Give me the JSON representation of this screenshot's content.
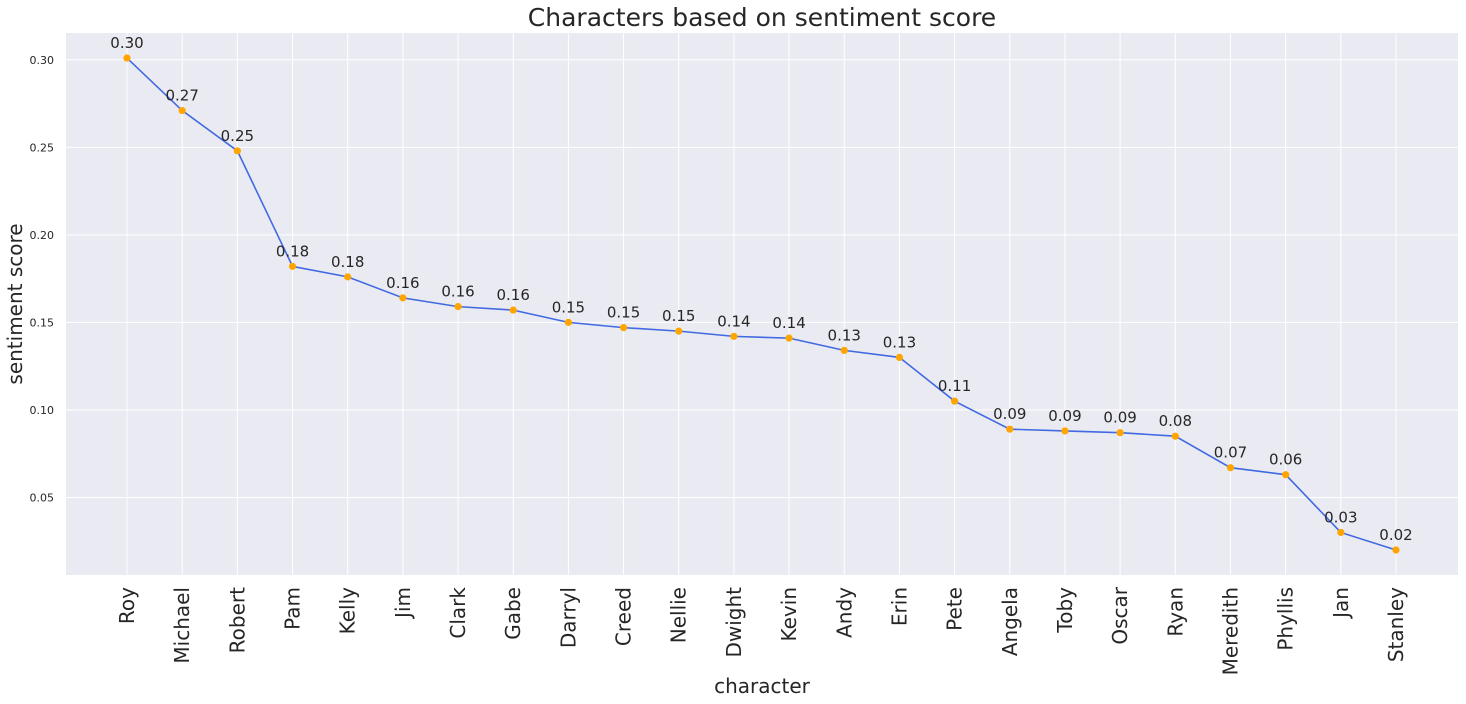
{
  "chart_data": {
    "type": "line",
    "title": "Characters based on sentiment score",
    "xlabel": "character",
    "ylabel": "sentiment score",
    "categories": [
      "Roy",
      "Michael",
      "Robert",
      "Pam",
      "Kelly",
      "Jim",
      "Clark",
      "Gabe",
      "Darryl",
      "Creed",
      "Nellie",
      "Dwight",
      "Kevin",
      "Andy",
      "Erin",
      "Pete",
      "Angela",
      "Toby",
      "Oscar",
      "Ryan",
      "Meredith",
      "Phyllis",
      "Jan",
      "Stanley"
    ],
    "values": [
      0.301,
      0.271,
      0.248,
      0.182,
      0.176,
      0.164,
      0.159,
      0.157,
      0.15,
      0.147,
      0.145,
      0.142,
      0.141,
      0.134,
      0.13,
      0.105,
      0.089,
      0.088,
      0.087,
      0.085,
      0.067,
      0.063,
      0.03,
      0.02
    ],
    "data_labels": [
      "0.30",
      "0.27",
      "0.25",
      "0.18",
      "0.18",
      "0.16",
      "0.16",
      "0.16",
      "0.15",
      "0.15",
      "0.15",
      "0.14",
      "0.14",
      "0.13",
      "0.13",
      "0.11",
      "0.09",
      "0.09",
      "0.09",
      "0.08",
      "0.07",
      "0.06",
      "0.03",
      "0.02"
    ],
    "yticks": [
      0.05,
      0.1,
      0.15,
      0.2,
      0.25,
      0.3
    ],
    "ytick_labels": [
      "0.05",
      "0.10",
      "0.15",
      "0.20",
      "0.25",
      "0.30"
    ],
    "ylim": [
      0.0057,
      0.3153
    ],
    "grid": true,
    "colors": {
      "background": "#eaeaf2",
      "grid": "#ffffff",
      "line": "#4169e1",
      "marker": "#ffa500"
    }
  }
}
